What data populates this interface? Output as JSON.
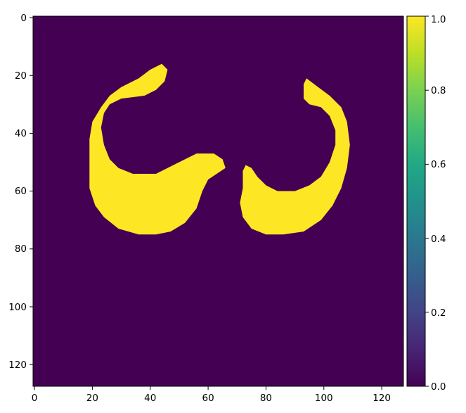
{
  "chart_data": {
    "type": "heatmap",
    "title": "",
    "xlabel": "",
    "ylabel": "",
    "xlim": [
      -0.5,
      127.5
    ],
    "ylim": [
      127.5,
      -0.5
    ],
    "x_ticks": [
      0,
      20,
      40,
      60,
      80,
      100,
      120
    ],
    "y_ticks": [
      0,
      20,
      40,
      60,
      80,
      100,
      120
    ],
    "x_tick_labels": [
      "0",
      "20",
      "40",
      "60",
      "80",
      "100",
      "120"
    ],
    "y_tick_labels": [
      "0",
      "20",
      "40",
      "60",
      "80",
      "100",
      "120"
    ],
    "colormap": "viridis",
    "value_range": [
      0.0,
      1.0
    ],
    "background_value": 0.0,
    "background_color": "#440154",
    "foreground_value": 1.0,
    "foreground_color": "#fde725",
    "colorbar_ticks": [
      0.0,
      0.2,
      0.4,
      0.6,
      0.8,
      1.0
    ],
    "colorbar_tick_labels": [
      "0.0",
      "0.2",
      "0.4",
      "0.6",
      "0.8",
      "1.0"
    ],
    "regions": [
      {
        "value": 1.0,
        "outline": [
          [
            44,
            16
          ],
          [
            46,
            18
          ],
          [
            45,
            22
          ],
          [
            42,
            25
          ],
          [
            38,
            27
          ],
          [
            30,
            28
          ],
          [
            26,
            30
          ],
          [
            24,
            33
          ],
          [
            23,
            38
          ],
          [
            24,
            44
          ],
          [
            26,
            49
          ],
          [
            29,
            52
          ],
          [
            34,
            54
          ],
          [
            42,
            54
          ],
          [
            50,
            50
          ],
          [
            56,
            47
          ],
          [
            62,
            47
          ],
          [
            65,
            49
          ],
          [
            66,
            52
          ],
          [
            63,
            54
          ],
          [
            60,
            56
          ],
          [
            58,
            60
          ],
          [
            56,
            66
          ],
          [
            52,
            71
          ],
          [
            47,
            74
          ],
          [
            42,
            75
          ],
          [
            36,
            75
          ],
          [
            29,
            73
          ],
          [
            24,
            69
          ],
          [
            21,
            65
          ],
          [
            19,
            59
          ],
          [
            19,
            52
          ],
          [
            19,
            42
          ],
          [
            20,
            36
          ],
          [
            23,
            31
          ],
          [
            26,
            27
          ],
          [
            30,
            24
          ],
          [
            36,
            21
          ],
          [
            40,
            18
          ]
        ]
      },
      {
        "value": 1.0,
        "outline": [
          [
            94,
            21
          ],
          [
            98,
            24
          ],
          [
            102,
            27
          ],
          [
            106,
            31
          ],
          [
            108,
            36
          ],
          [
            109,
            44
          ],
          [
            108,
            52
          ],
          [
            106,
            59
          ],
          [
            103,
            65
          ],
          [
            99,
            70
          ],
          [
            93,
            74
          ],
          [
            86,
            75
          ],
          [
            80,
            75
          ],
          [
            75,
            73
          ],
          [
            72,
            69
          ],
          [
            71,
            64
          ],
          [
            72,
            59
          ],
          [
            72,
            53
          ],
          [
            73,
            51
          ],
          [
            75,
            52
          ],
          [
            77,
            55
          ],
          [
            80,
            58
          ],
          [
            84,
            60
          ],
          [
            90,
            60
          ],
          [
            95,
            58
          ],
          [
            99,
            55
          ],
          [
            102,
            50
          ],
          [
            104,
            44
          ],
          [
            104,
            39
          ],
          [
            102,
            34
          ],
          [
            99,
            31
          ],
          [
            95,
            30
          ],
          [
            93,
            28
          ],
          [
            93,
            23
          ]
        ]
      }
    ]
  }
}
